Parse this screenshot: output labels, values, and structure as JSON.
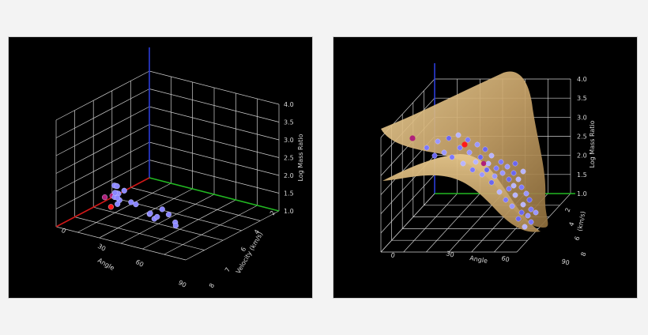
{
  "chart_data": [
    {
      "type": "scatter3d",
      "zlabel": "Log Mass Ratio",
      "xlabel": "Angle",
      "ylabel": "Velocity (km/s)",
      "z_ticks": [
        "1.0",
        "1.5",
        "2.0",
        "2.5",
        "3.0",
        "3.5",
        "4.0"
      ],
      "x_ticks": [
        "0",
        "30",
        "60",
        "90"
      ],
      "y_ticks": [
        "2",
        "4",
        "6",
        "7",
        "8"
      ],
      "xlim": [
        0,
        90
      ],
      "ylim": [
        1,
        9
      ],
      "zlim": [
        1.0,
        4.0
      ],
      "grid": true,
      "points": [
        {
          "x": 2,
          "y": 6,
          "z": 2.4,
          "kind": "magenta"
        },
        {
          "x": 8,
          "y": 6,
          "z": 2.2,
          "kind": "blue"
        },
        {
          "x": 10,
          "y": 5.5,
          "z": 2.0,
          "kind": "blue"
        },
        {
          "x": 12,
          "y": 4.5,
          "z": 1.8,
          "kind": "red"
        },
        {
          "x": 20,
          "y": 4,
          "z": 2.5,
          "kind": "blue"
        },
        {
          "x": 22,
          "y": 4,
          "z": 2.2,
          "kind": "blue"
        },
        {
          "x": 18,
          "y": 3,
          "z": 2.0,
          "kind": "magenta"
        },
        {
          "x": 26,
          "y": 3,
          "z": 2.4,
          "kind": "blue"
        },
        {
          "x": 28,
          "y": 3,
          "z": 2.1,
          "kind": "blue"
        },
        {
          "x": 30,
          "y": 2.5,
          "z": 1.9,
          "kind": "blue"
        },
        {
          "x": 32,
          "y": 2.5,
          "z": 2.3,
          "kind": "blue"
        },
        {
          "x": 34,
          "y": 2,
          "z": 2.0,
          "kind": "blue"
        },
        {
          "x": 36,
          "y": 2,
          "z": 1.8,
          "kind": "blue"
        },
        {
          "x": 38,
          "y": 2.5,
          "z": 2.1,
          "kind": "blue"
        },
        {
          "x": 40,
          "y": 3,
          "z": 1.7,
          "kind": "blue"
        },
        {
          "x": 44,
          "y": 3,
          "z": 1.6,
          "kind": "blue"
        },
        {
          "x": 48,
          "y": 4,
          "z": 1.3,
          "kind": "blue"
        },
        {
          "x": 52,
          "y": 4,
          "z": 1.1,
          "kind": "blue"
        },
        {
          "x": 56,
          "y": 3,
          "z": 1.2,
          "kind": "blue"
        },
        {
          "x": 58,
          "y": 3.5,
          "z": 1.1,
          "kind": "blue"
        },
        {
          "x": 62,
          "y": 5,
          "z": 1.0,
          "kind": "blue"
        },
        {
          "x": 64,
          "y": 4,
          "z": 1.2,
          "kind": "blue"
        },
        {
          "x": 66,
          "y": 3,
          "z": 1.3,
          "kind": "blue"
        },
        {
          "x": 55,
          "y": 6,
          "z": 1.0,
          "kind": "blue"
        }
      ]
    },
    {
      "type": "scatter3d",
      "zlabel": "Log Mass Ratio",
      "xlabel": "Angle",
      "ylabel": "(km/s)",
      "z_ticks": [
        "1.0",
        "1.5",
        "2.0",
        "2.5",
        "3.0",
        "3.5",
        "4.0"
      ],
      "x_ticks": [
        "0",
        "30",
        "60",
        "90"
      ],
      "y_ticks": [
        "2",
        "4",
        "6",
        "8"
      ],
      "xlim": [
        0,
        90
      ],
      "zlim": [
        1.0,
        4.0
      ],
      "grid": true,
      "surface": true
    }
  ]
}
